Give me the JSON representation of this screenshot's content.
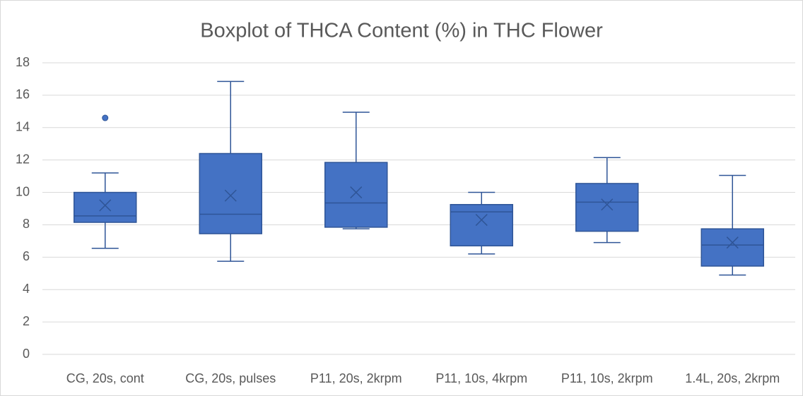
{
  "chart_data": {
    "type": "box",
    "title": "Boxplot of THCA Content (%) in THC Flower",
    "categories": [
      "CG, 20s, cont",
      "CG, 20s, pulses",
      "P11, 20s, 2krpm",
      "P11, 10s, 4krpm",
      "P11, 10s, 2krpm",
      "1.4L, 20s, 2krpm"
    ],
    "color": "#4472c4",
    "whisker_low": [
      6.55,
      5.75,
      7.75,
      6.2,
      6.9,
      4.9
    ],
    "q1": [
      8.15,
      7.45,
      7.85,
      6.7,
      7.6,
      5.45
    ],
    "median": [
      8.55,
      8.65,
      9.35,
      8.8,
      9.4,
      6.75
    ],
    "q3": [
      10.0,
      12.4,
      11.85,
      9.25,
      10.55,
      7.75
    ],
    "whisker_high": [
      11.2,
      16.85,
      14.95,
      10.0,
      12.15,
      11.05
    ],
    "mean": [
      9.2,
      9.8,
      10.0,
      8.3,
      9.25,
      6.9
    ],
    "outliers": [
      [
        14.6
      ],
      [],
      [],
      [],
      [],
      []
    ],
    "ylim": [
      0,
      18
    ],
    "yticks": [
      0,
      2,
      4,
      6,
      8,
      10,
      12,
      14,
      16,
      18
    ],
    "grid": true
  }
}
